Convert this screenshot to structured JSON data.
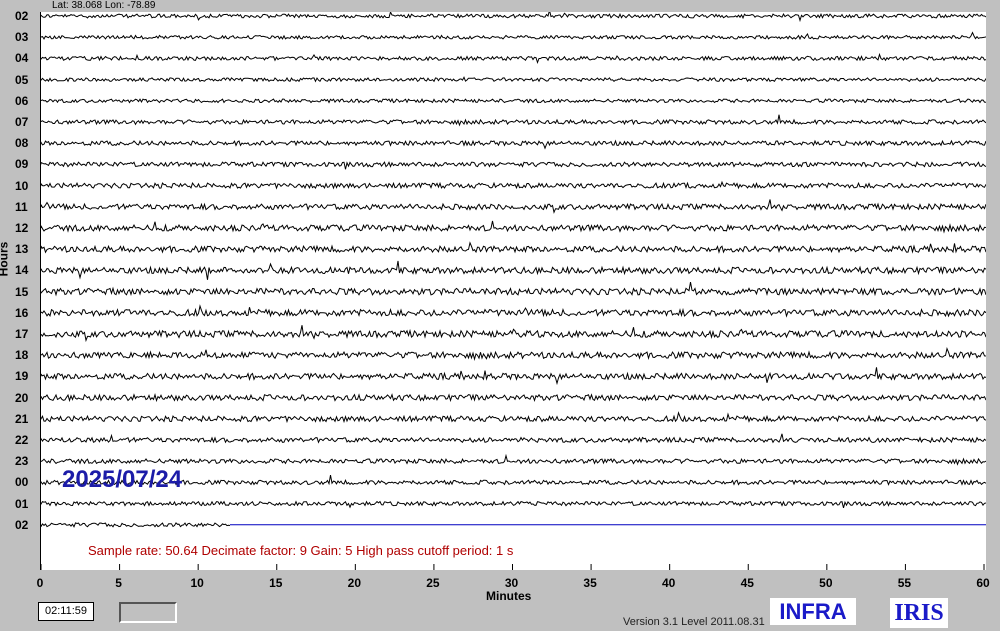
{
  "header": {
    "coords": "Lat: 38.068 Lon: -78.89"
  },
  "axes": {
    "y_title": "Hours",
    "x_title": "Minutes",
    "hour_labels": [
      "02",
      "03",
      "04",
      "05",
      "06",
      "07",
      "08",
      "09",
      "10",
      "11",
      "12",
      "13",
      "14",
      "15",
      "16",
      "17",
      "18",
      "19",
      "20",
      "21",
      "22",
      "23",
      "00",
      "01",
      "02"
    ],
    "minute_ticks": [
      "0",
      "5",
      "10",
      "15",
      "20",
      "25",
      "30",
      "35",
      "40",
      "45",
      "50",
      "55",
      "60"
    ]
  },
  "date_stamp": "2025/07/24",
  "params_text": "Sample rate: 50.64  Decimate factor: 9  Gain: 5  High pass cutoff period: 1 s",
  "status": {
    "clock": "02:11:59"
  },
  "footer": {
    "version": "Version 3.1 Level 2011.08.31",
    "infra_logo": "INFRA",
    "iris_logo": "IRIS"
  },
  "colors": {
    "trace": "#000000",
    "current_line": "#0000c0",
    "date_stamp": "#1c1ca8",
    "params_text": "#b00000"
  },
  "chart_data": {
    "type": "line",
    "title": "",
    "xlabel": "Minutes",
    "ylabel": "Hours",
    "xlim": [
      0,
      60
    ],
    "rows": [
      "02",
      "03",
      "04",
      "05",
      "06",
      "07",
      "08",
      "09",
      "10",
      "11",
      "12",
      "13",
      "14",
      "15",
      "16",
      "17",
      "18",
      "19",
      "20",
      "21",
      "22",
      "23",
      "00",
      "01",
      "02"
    ],
    "activity_level": [
      0.25,
      0.2,
      0.25,
      0.2,
      0.2,
      0.35,
      0.4,
      0.4,
      0.5,
      0.6,
      0.7,
      0.7,
      0.75,
      0.8,
      0.8,
      0.8,
      0.75,
      0.7,
      0.65,
      0.6,
      0.45,
      0.4,
      0.35,
      0.3,
      0.3
    ],
    "last_row_recorded_until_minute": 12
  }
}
